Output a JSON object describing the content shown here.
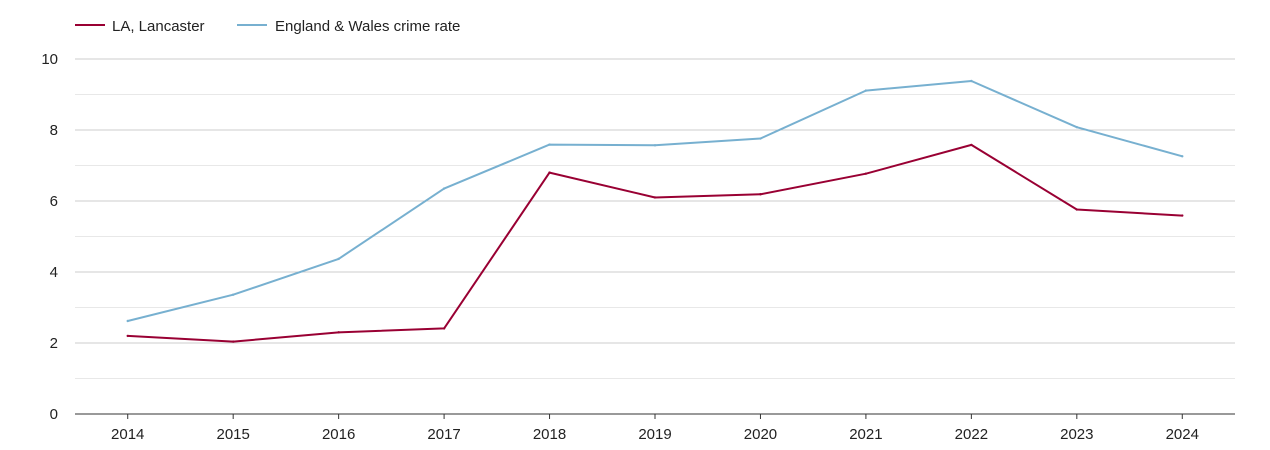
{
  "chart_data": {
    "type": "line",
    "title": "",
    "xlabel": "",
    "ylabel": "",
    "x": [
      "2014",
      "2015",
      "2016",
      "2017",
      "2018",
      "2019",
      "2020",
      "2021",
      "2022",
      "2023",
      "2024"
    ],
    "ylim": [
      0,
      10
    ],
    "yticks": [
      "0",
      "2",
      "4",
      "6",
      "8",
      "10"
    ],
    "grid": true,
    "legend": "top-left",
    "series": [
      {
        "name": "LA, Lancaster",
        "color": "#990033",
        "values": [
          2.2,
          2.04,
          2.3,
          2.41,
          6.8,
          6.1,
          6.19,
          6.77,
          7.58,
          5.76,
          5.59
        ]
      },
      {
        "name": "England & Wales crime rate",
        "color": "#77b0d0",
        "values": [
          2.62,
          3.36,
          4.37,
          6.35,
          7.59,
          7.57,
          7.76,
          9.11,
          9.38,
          8.08,
          7.26
        ]
      }
    ]
  }
}
